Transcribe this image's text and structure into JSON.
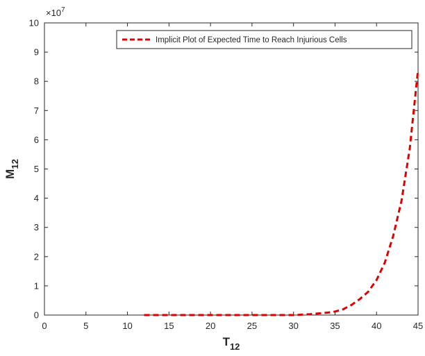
{
  "chart_data": {
    "type": "line",
    "xlabel": "T",
    "xlabel_sub": "12",
    "ylabel": "M",
    "ylabel_sub": "12",
    "xlim": [
      0,
      45
    ],
    "ylim": [
      0,
      10
    ],
    "xticks": [
      "0",
      "5",
      "10",
      "15",
      "20",
      "25",
      "30",
      "35",
      "40",
      "45"
    ],
    "yticks": [
      "0",
      "1",
      "2",
      "3",
      "4",
      "5",
      "6",
      "7",
      "8",
      "9",
      "10"
    ],
    "y_multiplier": "×10",
    "y_multiplier_exponent": "7",
    "grid": false,
    "legend_position": "top-right",
    "series": [
      {
        "name": "Implicit Plot of Expected Time to Reach Injurious Cells",
        "color": "#e00000",
        "style": "dashed",
        "x": [
          12,
          15,
          20,
          25,
          30,
          32,
          34,
          35,
          36,
          37,
          38,
          39,
          40,
          41,
          42,
          43,
          44,
          45
        ],
        "y": [
          0,
          0,
          0,
          0,
          0,
          0.03,
          0.08,
          0.12,
          0.2,
          0.35,
          0.55,
          0.8,
          1.2,
          1.8,
          2.7,
          3.9,
          5.7,
          8.4
        ]
      }
    ]
  }
}
